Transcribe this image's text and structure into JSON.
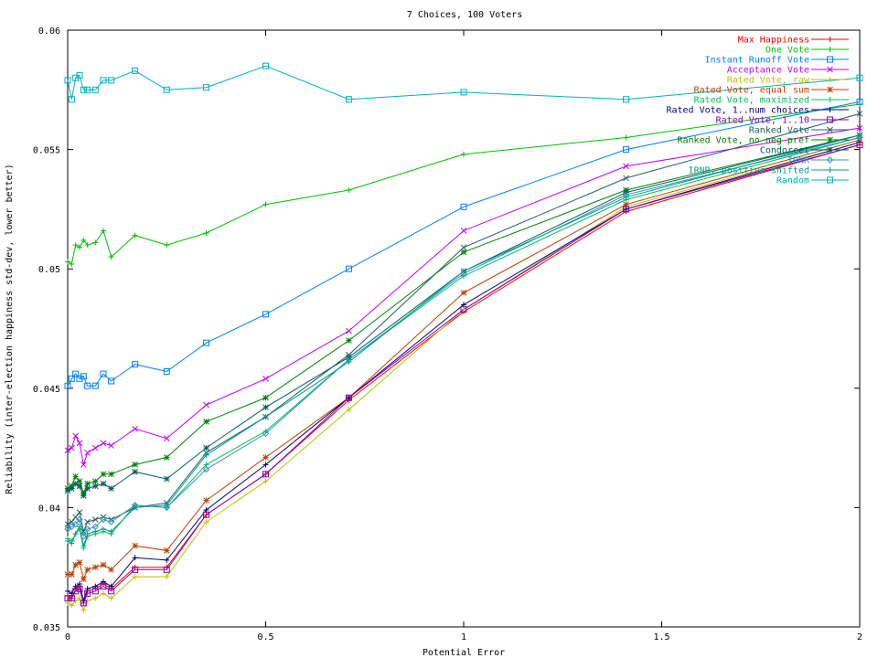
{
  "chart_data": {
    "type": "line",
    "title": "7 Choices, 100 Voters",
    "xlabel": "Potential Error",
    "ylabel": "Reliability (inter-election happiness std-dev, lower better)",
    "xlim": [
      0,
      2
    ],
    "ylim": [
      0.035,
      0.06
    ],
    "xticks": [
      0,
      0.5,
      1,
      1.5,
      2
    ],
    "xtick_labels": [
      "0",
      "0.5",
      "1",
      "1.5",
      "2"
    ],
    "yticks": [
      0.035,
      0.04,
      0.045,
      0.05,
      0.055,
      0.06
    ],
    "ytick_labels": [
      "0.035",
      "0.04",
      "0.045",
      "0.05",
      "0.055",
      "0.06"
    ],
    "grid": false,
    "legend_position": "top-right",
    "x": [
      0,
      0.01,
      0.02,
      0.03,
      0.04,
      0.05,
      0.07,
      0.09,
      0.11,
      0.17,
      0.25,
      0.35,
      0.5,
      0.71,
      1.0,
      1.41,
      2.0
    ],
    "series": [
      {
        "name": "Max Happiness",
        "color": "#ff0000",
        "marker": "plus",
        "values": [
          0.0363,
          0.0362,
          0.0366,
          0.0367,
          0.036,
          0.0365,
          0.0366,
          0.0368,
          0.0366,
          0.0375,
          0.0375,
          0.0397,
          0.0414,
          0.0445,
          0.0482,
          0.0524,
          0.0552
        ]
      },
      {
        "name": "One Vote",
        "color": "#00c000",
        "marker": "plus",
        "values": [
          0.0503,
          0.0502,
          0.051,
          0.0509,
          0.0512,
          0.051,
          0.0511,
          0.0516,
          0.0505,
          0.0514,
          0.051,
          0.0515,
          0.0527,
          0.0533,
          0.0548,
          0.0555,
          0.0569
        ]
      },
      {
        "name": "Instant Runoff Vote",
        "color": "#0080ff",
        "marker": "square",
        "values": [
          0.0451,
          0.0454,
          0.0456,
          0.0454,
          0.0455,
          0.0451,
          0.0451,
          0.0456,
          0.0453,
          0.046,
          0.0457,
          0.0469,
          0.0481,
          0.05,
          0.0526,
          0.055,
          0.057
        ]
      },
      {
        "name": "Acceptance Vote",
        "color": "#c000ff",
        "marker": "x",
        "values": [
          0.0424,
          0.0425,
          0.043,
          0.0427,
          0.0418,
          0.0423,
          0.0425,
          0.0427,
          0.0426,
          0.0433,
          0.0429,
          0.0443,
          0.0454,
          0.0474,
          0.0516,
          0.0543,
          0.0559
        ]
      },
      {
        "name": "Rated Vote, raw",
        "color": "#c0c000",
        "marker": "plus",
        "values": [
          0.036,
          0.0359,
          0.0361,
          0.0362,
          0.0357,
          0.0361,
          0.0362,
          0.0364,
          0.0362,
          0.0371,
          0.0371,
          0.0394,
          0.0411,
          0.0441,
          0.0483,
          0.0526,
          0.0553
        ]
      },
      {
        "name": "Rated Vote, equal sum",
        "color": "#c04000",
        "marker": "star",
        "values": [
          0.0372,
          0.0372,
          0.0376,
          0.0377,
          0.037,
          0.0374,
          0.0375,
          0.0376,
          0.0374,
          0.0384,
          0.0382,
          0.0403,
          0.0421,
          0.0446,
          0.049,
          0.0527,
          0.0554
        ]
      },
      {
        "name": "Rated Vote, maximized",
        "color": "#00c060",
        "marker": "plus",
        "values": [
          0.0387,
          0.0386,
          0.0389,
          0.0391,
          0.0383,
          0.0388,
          0.0389,
          0.039,
          0.0389,
          0.0401,
          0.04,
          0.0418,
          0.0432,
          0.0462,
          0.0497,
          0.0529,
          0.0555
        ]
      },
      {
        "name": "Rated Vote, 1..num choices",
        "color": "#000080",
        "marker": "plus",
        "values": [
          0.0365,
          0.0364,
          0.0367,
          0.0368,
          0.0361,
          0.0366,
          0.0367,
          0.0369,
          0.0367,
          0.0379,
          0.0378,
          0.0399,
          0.0418,
          0.0446,
          0.0485,
          0.0525,
          0.0553
        ]
      },
      {
        "name": "Rated Vote, 1..10",
        "color": "#8000c0",
        "marker": "square",
        "values": [
          0.0362,
          0.0362,
          0.0365,
          0.0366,
          0.036,
          0.0364,
          0.0365,
          0.0367,
          0.0365,
          0.0374,
          0.0374,
          0.0397,
          0.0414,
          0.0446,
          0.0483,
          0.0525,
          0.0552
        ]
      },
      {
        "name": "Ranked Vote",
        "color": "#206060",
        "marker": "x",
        "values": [
          0.0393,
          0.0394,
          0.0396,
          0.0398,
          0.039,
          0.0394,
          0.0395,
          0.0396,
          0.0395,
          0.04,
          0.0402,
          0.0423,
          0.0438,
          0.0464,
          0.0509,
          0.0538,
          0.0565
        ]
      },
      {
        "name": "Ranked Vote, no neg pref",
        "color": "#008000",
        "marker": "star",
        "values": [
          0.0408,
          0.0409,
          0.0413,
          0.0411,
          0.0406,
          0.041,
          0.0411,
          0.0414,
          0.0414,
          0.0418,
          0.0421,
          0.0436,
          0.0446,
          0.047,
          0.0507,
          0.0533,
          0.0556
        ]
      },
      {
        "name": "Condorcet",
        "color": "#006060",
        "marker": "star",
        "values": [
          0.0407,
          0.0408,
          0.041,
          0.0409,
          0.0405,
          0.0408,
          0.0409,
          0.041,
          0.0408,
          0.0415,
          0.0412,
          0.0425,
          0.0442,
          0.0463,
          0.0499,
          0.0532,
          0.0556
        ]
      },
      {
        "name": "IRNR",
        "color": "#3090c0",
        "marker": "diamond",
        "values": [
          0.0391,
          0.0392,
          0.0393,
          0.0395,
          0.0388,
          0.0391,
          0.0392,
          0.0395,
          0.0394,
          0.0401,
          0.04,
          0.0416,
          0.0431,
          0.0462,
          0.0498,
          0.0531,
          0.0555
        ]
      },
      {
        "name": "IRNR, positive shifted",
        "color": "#00a090",
        "marker": "plus",
        "values": [
          0.0386,
          0.0385,
          0.0389,
          0.0392,
          0.0384,
          0.0389,
          0.039,
          0.0391,
          0.039,
          0.04,
          0.0401,
          0.0422,
          0.0438,
          0.0461,
          0.0499,
          0.053,
          0.0556
        ]
      },
      {
        "name": "Random",
        "color": "#00b0c0",
        "marker": "square",
        "values": [
          0.0579,
          0.0571,
          0.058,
          0.0581,
          0.0575,
          0.0575,
          0.0575,
          0.0579,
          0.0579,
          0.0583,
          0.0575,
          0.0576,
          0.0585,
          0.0571,
          0.0574,
          0.0571,
          0.058
        ]
      }
    ]
  }
}
